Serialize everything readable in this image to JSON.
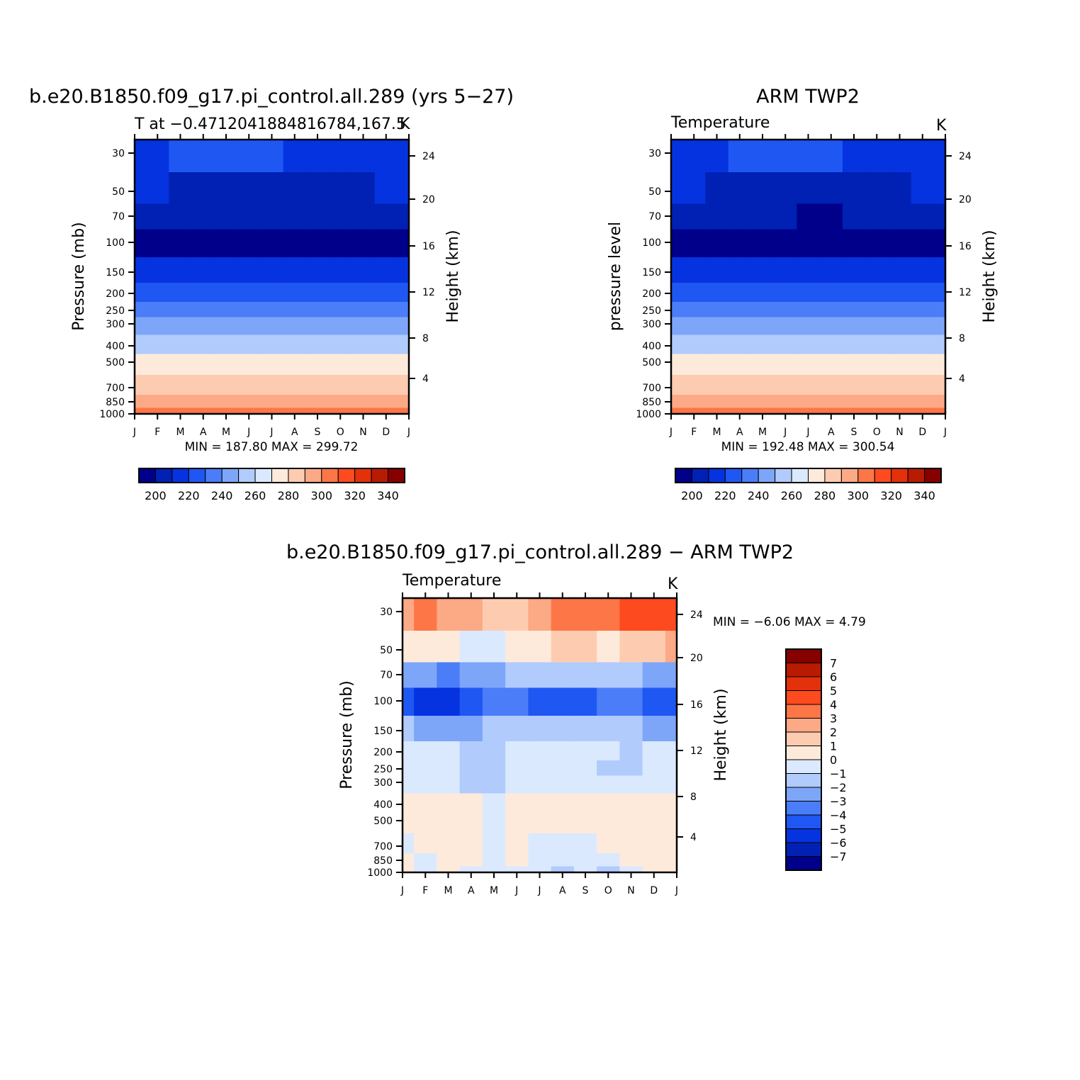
{
  "months": [
    "J",
    "F",
    "M",
    "A",
    "M",
    "J",
    "J",
    "A",
    "S",
    "O",
    "N",
    "D",
    "J"
  ],
  "pressure_ticks": [
    "30",
    "50",
    "70",
    "100",
    "150",
    "200",
    "250",
    "300",
    "400",
    "500",
    "700",
    "850",
    "1000"
  ],
  "height_ticks": [
    "24",
    "20",
    "16",
    "12",
    "8",
    "4"
  ],
  "unit": "K",
  "colors": {
    "abs": [
      "#00008a",
      "#0021b3",
      "#0533e0",
      "#1f57f2",
      "#4a7df7",
      "#7da6f9",
      "#b1cbfc",
      "#dae9fe",
      "#fdeadb",
      "#fdccb0",
      "#fca986",
      "#fd7647",
      "#fd4a1f",
      "#e3310b",
      "#b71b02",
      "#870000"
    ],
    "diff": [
      "#00008a",
      "#0021b3",
      "#0533e0",
      "#1f57f2",
      "#4a7df7",
      "#7da6f9",
      "#b1cbfc",
      "#dae9fe",
      "#fdeadb",
      "#fdccb0",
      "#fca986",
      "#fd7647",
      "#fd4a1f",
      "#e3310b",
      "#b71b02",
      "#870000"
    ]
  },
  "panels": [
    {
      "title": "b.e20.B1850.f09_g17.pi_control.all.289 (yrs 5−27)",
      "subtitle": "T at −0.4712041884816784,167.5",
      "unit": "K",
      "ylabel": "Pressure (mb)",
      "ylabel_right": "Height (km)",
      "stats": "MIN = 187.80  MAX = 299.72"
    },
    {
      "title": "ARM TWP2",
      "subtitle": "Temperature",
      "unit": "K",
      "ylabel": "pressure level",
      "ylabel_right": "Height (km)",
      "stats": "MIN = 192.48  MAX = 300.54"
    },
    {
      "title": "b.e20.B1850.f09_g17.pi_control.all.289 − ARM TWP2",
      "subtitle": "Temperature",
      "unit": "K",
      "ylabel": "Pressure (mb)",
      "ylabel_right": "Height (km)",
      "stats": "MIN =   −6.06  MAX =     4.79"
    }
  ],
  "colorbar_abs_labels": [
    "200",
    "220",
    "240",
    "260",
    "280",
    "300",
    "320",
    "340"
  ],
  "colorbar_diff_labels": [
    "7",
    "6",
    "5",
    "4",
    "3",
    "2",
    "1",
    "0",
    "−1",
    "−2",
    "−3",
    "−4",
    "−5",
    "−6",
    "−7"
  ],
  "chart_data": [
    {
      "type": "heatmap",
      "title": "b.e20.B1850.f09_g17.pi_control.all.289 (yrs 5−27)",
      "subtitle": "T at −0.4712041884816784,167.5",
      "xlabel": "",
      "ylabel": "Pressure (mb)",
      "ylabel_right": "Height (km)",
      "x": [
        "J",
        "F",
        "M",
        "A",
        "M",
        "J",
        "J",
        "A",
        "S",
        "O",
        "N",
        "D",
        "J"
      ],
      "y_pressure": [
        30,
        50,
        70,
        100,
        150,
        200,
        250,
        300,
        400,
        500,
        700,
        850,
        1000
      ],
      "values_K": [
        [
          214,
          214,
          215,
          216,
          217,
          216,
          215,
          214,
          214,
          214,
          214,
          214,
          214
        ],
        [
          205,
          205,
          204,
          204,
          203,
          203,
          203,
          202,
          203,
          203,
          204,
          205,
          205
        ],
        [
          199,
          199,
          198,
          198,
          197,
          196,
          195,
          195,
          196,
          197,
          198,
          199,
          199
        ],
        [
          192,
          192,
          192,
          192,
          192,
          191,
          191,
          191,
          191,
          191,
          192,
          192,
          192
        ],
        [
          206,
          206,
          206,
          206,
          206,
          206,
          206,
          206,
          206,
          206,
          206,
          206,
          206
        ],
        [
          219,
          219,
          219,
          219,
          219,
          219,
          219,
          219,
          219,
          219,
          219,
          219,
          219
        ],
        [
          229,
          229,
          229,
          229,
          229,
          229,
          229,
          229,
          229,
          229,
          229,
          229,
          229
        ],
        [
          238,
          238,
          238,
          238,
          238,
          238,
          238,
          238,
          238,
          238,
          238,
          238,
          238
        ],
        [
          254,
          254,
          254,
          254,
          254,
          254,
          254,
          254,
          254,
          254,
          254,
          254,
          254
        ],
        [
          267,
          267,
          267,
          267,
          267,
          267,
          267,
          267,
          267,
          267,
          267,
          267,
          267
        ],
        [
          283,
          283,
          283,
          283,
          283,
          283,
          283,
          283,
          283,
          283,
          283,
          283,
          283
        ],
        [
          292,
          292,
          292,
          292,
          292,
          292,
          292,
          292,
          292,
          292,
          292,
          292,
          292
        ],
        [
          299,
          299,
          299,
          299,
          299,
          299,
          299,
          299,
          299,
          299,
          299,
          299,
          299
        ]
      ],
      "contour_levels": [
        195,
        200,
        205,
        210,
        215,
        220,
        225,
        230,
        235,
        240,
        245,
        250,
        255,
        260,
        265,
        270,
        275,
        280,
        285,
        290,
        295,
        300,
        305,
        310,
        315,
        320,
        325,
        330,
        335,
        340,
        345
      ],
      "min": 187.8,
      "max": 299.72,
      "unit": "K"
    },
    {
      "type": "heatmap",
      "title": "ARM TWP2",
      "subtitle": "Temperature",
      "ylabel": "pressure level",
      "ylabel_right": "Height (km)",
      "x": [
        "J",
        "F",
        "M",
        "A",
        "M",
        "J",
        "J",
        "A",
        "S",
        "O",
        "N",
        "D",
        "J"
      ],
      "y_pressure": [
        30,
        50,
        70,
        100,
        150,
        200,
        250,
        300,
        400,
        500,
        700,
        850,
        1000
      ],
      "values_K": [
        [
          212,
          213,
          214,
          215,
          216,
          216,
          216,
          215,
          214,
          213,
          213,
          212,
          212
        ],
        [
          205,
          205,
          204,
          204,
          203,
          203,
          203,
          202,
          203,
          203,
          204,
          205,
          205
        ],
        [
          197,
          197,
          197,
          196,
          196,
          195,
          194,
          194,
          195,
          196,
          196,
          197,
          197
        ],
        [
          191,
          191,
          191,
          191,
          191,
          191,
          191,
          191,
          191,
          191,
          191,
          191,
          191
        ],
        [
          206,
          206,
          206,
          206,
          206,
          206,
          206,
          206,
          206,
          206,
          206,
          206,
          206
        ],
        [
          219,
          219,
          219,
          219,
          219,
          219,
          219,
          219,
          219,
          219,
          219,
          219,
          219
        ],
        [
          229,
          229,
          229,
          229,
          229,
          229,
          229,
          229,
          229,
          229,
          229,
          229,
          229
        ],
        [
          238,
          238,
          238,
          238,
          238,
          238,
          238,
          238,
          238,
          238,
          238,
          238,
          238
        ],
        [
          254,
          254,
          254,
          254,
          254,
          254,
          254,
          254,
          254,
          254,
          254,
          254,
          254
        ],
        [
          267,
          267,
          267,
          267,
          267,
          267,
          267,
          267,
          267,
          267,
          267,
          267,
          267
        ],
        [
          283,
          283,
          283,
          283,
          283,
          283,
          283,
          283,
          283,
          283,
          283,
          283,
          283
        ],
        [
          294,
          294,
          294,
          294,
          294,
          294,
          294,
          294,
          294,
          294,
          294,
          294,
          294
        ],
        [
          300,
          300,
          300,
          300,
          300,
          300,
          300,
          300,
          300,
          300,
          300,
          300,
          300
        ]
      ],
      "min": 192.48,
      "max": 300.54,
      "unit": "K"
    },
    {
      "type": "heatmap",
      "title": "b.e20.B1850.f09_g17.pi_control.all.289 − ARM TWP2",
      "subtitle": "Temperature",
      "ylabel": "Pressure (mb)",
      "ylabel_right": "Height (km)",
      "x": [
        "J",
        "F",
        "M",
        "A",
        "M",
        "J",
        "J",
        "A",
        "S",
        "O",
        "N",
        "D",
        "J"
      ],
      "y_pressure": [
        30,
        50,
        70,
        100,
        150,
        200,
        250,
        300,
        400,
        500,
        700,
        850,
        1000
      ],
      "values_K": [
        [
          2.5,
          3.2,
          2.8,
          2.2,
          1.5,
          1.8,
          2.5,
          3.0,
          3.5,
          3.8,
          4.2,
          4.5,
          4.6
        ],
        [
          0.5,
          0.8,
          0.5,
          -0.2,
          -0.5,
          0.2,
          0.6,
          1.0,
          1.2,
          0.8,
          1.5,
          1.8,
          2.0
        ],
        [
          -2.5,
          -3.0,
          -3.5,
          -3.0,
          -2.5,
          -2.0,
          -1.8,
          -1.5,
          -1.5,
          -1.8,
          -2.0,
          -2.5,
          -2.5
        ],
        [
          -4.5,
          -5.8,
          -5.5,
          -4.5,
          -3.5,
          -4.0,
          -4.5,
          -5.0,
          -4.5,
          -4.0,
          -3.5,
          -4.5,
          -5.0
        ],
        [
          -2.0,
          -2.5,
          -2.5,
          -2.5,
          -2.0,
          -1.5,
          -1.5,
          -1.5,
          -1.5,
          -1.8,
          -2.0,
          -2.5,
          -2.5
        ],
        [
          -0.8,
          -0.8,
          -0.7,
          -1.2,
          -1.5,
          -0.8,
          -0.6,
          -0.6,
          -0.7,
          -0.8,
          -1.2,
          -0.9,
          -0.8
        ],
        [
          -0.6,
          -0.6,
          -0.5,
          -1.3,
          -1.4,
          -0.6,
          -0.5,
          -0.5,
          -0.5,
          -1.1,
          -1.2,
          -0.6,
          -0.5
        ],
        [
          -0.5,
          -0.8,
          -0.5,
          -1.2,
          -1.2,
          -0.5,
          -0.5,
          -0.4,
          -0.4,
          -1.0,
          -0.6,
          -0.5,
          -0.4
        ],
        [
          0.3,
          0.4,
          0.5,
          0.3,
          -0.2,
          0.4,
          0.5,
          0.6,
          0.4,
          0.4,
          0.5,
          0.5,
          0.6
        ],
        [
          0.4,
          0.5,
          0.6,
          0.4,
          -0.2,
          0.5,
          0.6,
          0.5,
          0.7,
          0.5,
          0.4,
          0.6,
          0.8
        ],
        [
          -0.3,
          0.2,
          0.4,
          0.2,
          -0.4,
          0.3,
          -0.3,
          -0.3,
          -0.2,
          0.3,
          0.2,
          0.4,
          0.3
        ],
        [
          0.2,
          -0.3,
          0.3,
          0.3,
          -0.2,
          0.2,
          -0.4,
          -0.8,
          -0.5,
          -0.2,
          0.2,
          0.2,
          0.2
        ],
        [
          0.3,
          -0.2,
          0.2,
          -0.3,
          -0.4,
          -0.3,
          -0.5,
          -1.3,
          -0.6,
          -1.2,
          -0.3,
          0.2,
          0.5
        ]
      ],
      "min": -6.06,
      "max": 4.79,
      "unit": "K"
    }
  ]
}
